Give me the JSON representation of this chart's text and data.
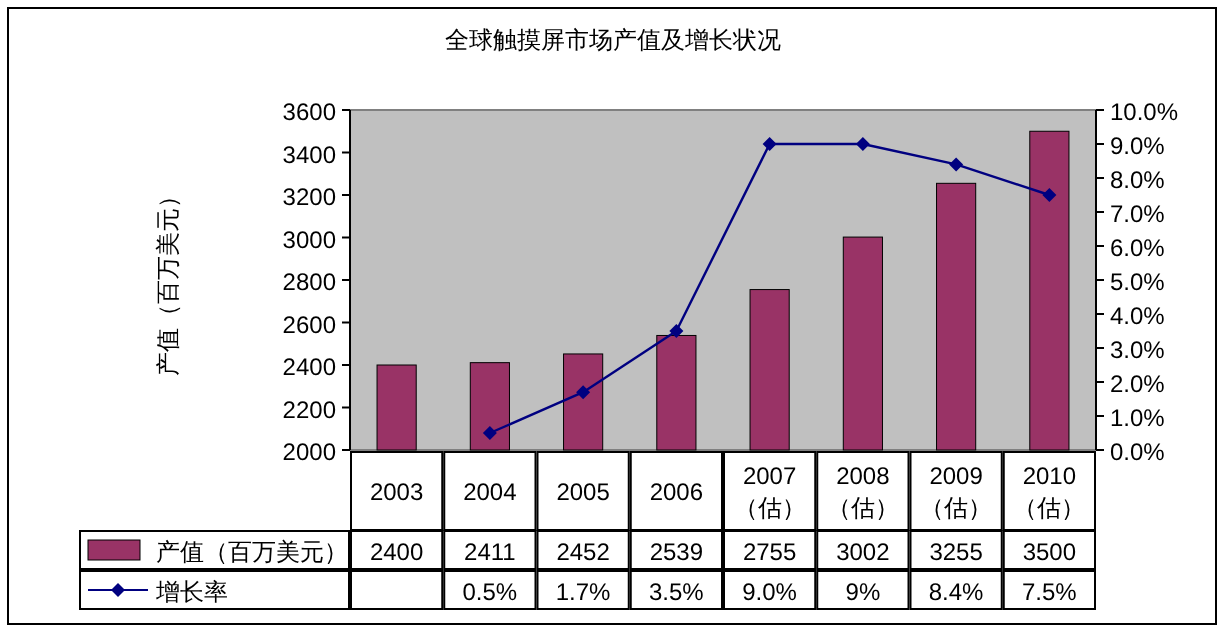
{
  "chart_data": {
    "type": "bar",
    "title": "全球触摸屏市场产值及增长状况",
    "ylabel": "产值（百万美元）",
    "categories": [
      "2003",
      "2004",
      "2005",
      "2006",
      "2007（估）",
      "2008（估）",
      "2009（估）",
      "2010（估）"
    ],
    "series": [
      {
        "name": "产值（百万美元）",
        "type": "bar",
        "color": "#993366",
        "values": [
          2400,
          2411,
          2452,
          2539,
          2755,
          3002,
          3255,
          3500
        ]
      },
      {
        "name": "增长率",
        "type": "line",
        "axis": "y2",
        "color": "#000080",
        "marker": "diamond",
        "values": [
          null,
          0.5,
          1.7,
          3.5,
          9.0,
          9,
          8.4,
          7.5
        ],
        "value_labels": [
          null,
          "0.5%",
          "1.7%",
          "3.5%",
          "9.0%",
          "9%",
          "8.4%",
          "7.5%"
        ]
      }
    ],
    "data_labels": true,
    "ylim": [
      2000,
      3600
    ],
    "yticks": [
      2000,
      2200,
      2400,
      2600,
      2800,
      3000,
      3200,
      3400,
      3600
    ],
    "y2lim": [
      0,
      10
    ],
    "y2ticks": [
      {
        "value": 0,
        "label": "0.0%"
      },
      {
        "value": 1,
        "label": "1.0%"
      },
      {
        "value": 2,
        "label": "2.0%"
      },
      {
        "value": 3,
        "label": "3.0%"
      },
      {
        "value": 4,
        "label": "4.0%"
      },
      {
        "value": 5,
        "label": "5.0%"
      },
      {
        "value": 6,
        "label": "6.0%"
      },
      {
        "value": 7,
        "label": "7.0%"
      },
      {
        "value": 8,
        "label": "8.0%"
      },
      {
        "value": 9,
        "label": "9.0%"
      },
      {
        "value": 10,
        "label": "10.0%"
      }
    ],
    "grid": false,
    "legend": "bottom"
  }
}
